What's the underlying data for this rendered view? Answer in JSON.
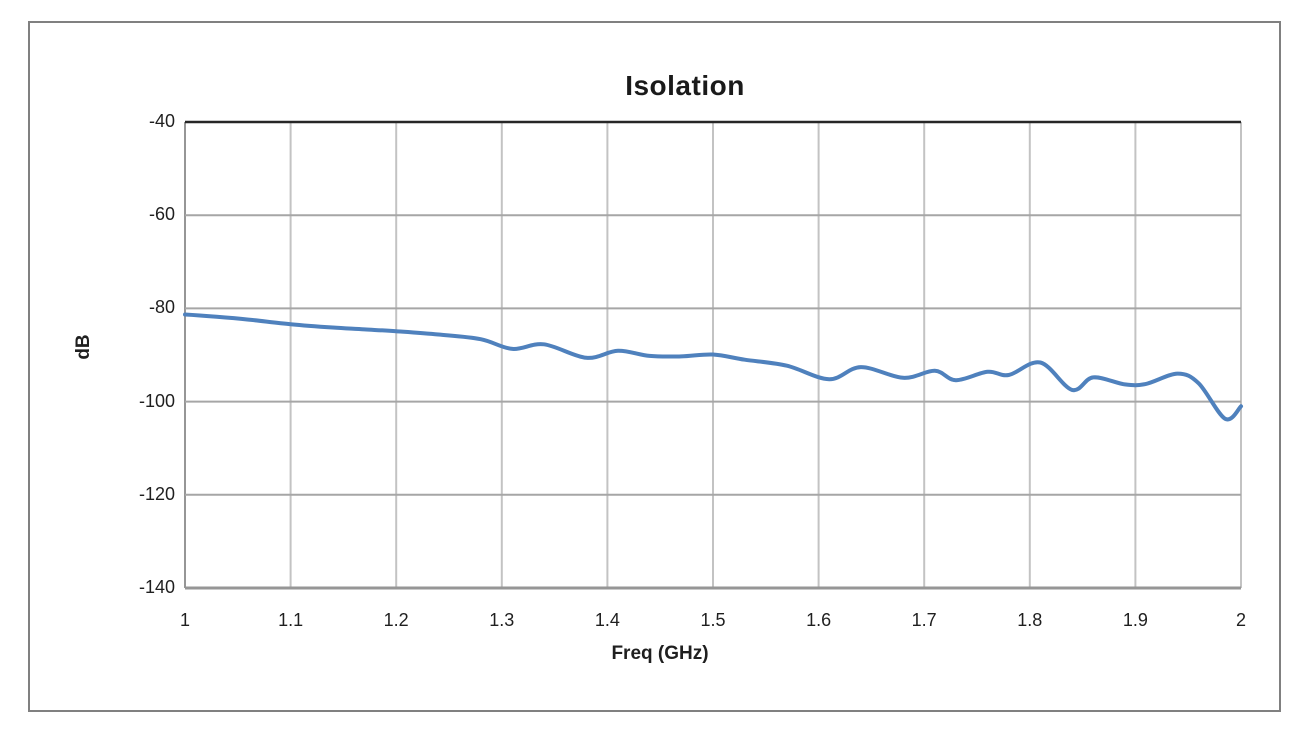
{
  "window": {
    "background": "#FFFFFF",
    "frame_color": "#808080"
  },
  "chart_data": {
    "type": "line",
    "title": "Isolation",
    "xlabel": "Freq (GHz)",
    "ylabel": "dB",
    "xlim": [
      1,
      2
    ],
    "ylim": [
      -140,
      -40
    ],
    "x_ticks": [
      "1",
      "1.1",
      "1.2",
      "1.3",
      "1.4",
      "1.5",
      "1.6",
      "1.7",
      "1.8",
      "1.9",
      "2"
    ],
    "y_ticks": [
      "-40",
      "-60",
      "-80",
      "-100",
      "-120",
      "-140"
    ],
    "grid": true,
    "legend": "none",
    "smooth": true,
    "colors": {
      "line": "#4F81BD",
      "grid_vertical": "#C3C3C3",
      "grid_horizontal": "#A6A6A6",
      "axis_top": "#262626",
      "axis_side": "#969696",
      "text": "#1F1F1F"
    },
    "series": [
      {
        "name": "Isolation",
        "x": [
          1.0,
          1.03,
          1.06,
          1.1,
          1.14,
          1.17,
          1.2,
          1.24,
          1.28,
          1.31,
          1.34,
          1.38,
          1.41,
          1.44,
          1.47,
          1.5,
          1.53,
          1.57,
          1.61,
          1.64,
          1.68,
          1.71,
          1.73,
          1.76,
          1.78,
          1.81,
          1.84,
          1.86,
          1.89,
          1.91,
          1.94,
          1.96,
          1.985,
          2.0
        ],
        "y": [
          -81.3,
          -81.8,
          -82.4,
          -83.4,
          -84.1,
          -84.5,
          -84.9,
          -85.6,
          -86.6,
          -88.7,
          -87.7,
          -90.6,
          -89.1,
          -90.2,
          -90.3,
          -89.9,
          -91.0,
          -92.3,
          -95.2,
          -92.6,
          -94.9,
          -93.4,
          -95.4,
          -93.6,
          -94.3,
          -91.6,
          -97.5,
          -94.8,
          -96.3,
          -96.2,
          -94.0,
          -96.1,
          -103.7,
          -101.0
        ]
      }
    ]
  }
}
